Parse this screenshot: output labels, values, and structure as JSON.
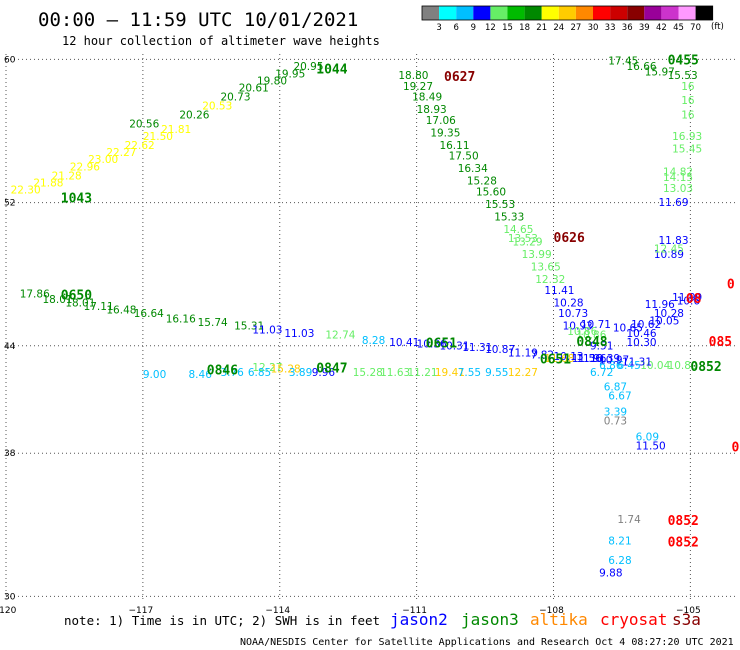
{
  "header": {
    "title": "00:00 – 11:59 UTC 10/01/2021",
    "subtitle": "12 hour collection of altimeter wave heights"
  },
  "legend": {
    "unit": "(ft)",
    "bins": [
      {
        "label": "3",
        "color": "#808080"
      },
      {
        "label": "6",
        "color": "#00ffff"
      },
      {
        "label": "9",
        "color": "#00bfff"
      },
      {
        "label": "12",
        "color": "#0000ff"
      },
      {
        "label": "15",
        "color": "#66ee66"
      },
      {
        "label": "18",
        "color": "#00bb00"
      },
      {
        "label": "21",
        "color": "#008800"
      },
      {
        "label": "24",
        "color": "#ffff00"
      },
      {
        "label": "27",
        "color": "#ffcc00"
      },
      {
        "label": "30",
        "color": "#ff8800"
      },
      {
        "label": "33",
        "color": "#ff0000"
      },
      {
        "label": "36",
        "color": "#cc0000"
      },
      {
        "label": "39",
        "color": "#880000"
      },
      {
        "label": "42",
        "color": "#990099"
      },
      {
        "label": "45",
        "color": "#cc33cc"
      },
      {
        "label": "70",
        "color": "#ff99ff"
      },
      {
        "label": "",
        "color": "#000000"
      }
    ]
  },
  "footer": {
    "note": "note:  1) Time is in UTC;  2) SWH is in feet",
    "satellites": [
      {
        "name": "jason2",
        "color": "#0000ff"
      },
      {
        "name": "jason3",
        "color": "#008800"
      },
      {
        "name": "altika",
        "color": "#ff8800"
      },
      {
        "name": "cryosat",
        "color": "#ff0000"
      },
      {
        "name": "s3a",
        "color": "#880000"
      }
    ],
    "credit": "NOAA/NESDIS Center for Satellite Applications and Research     Oct  4 08:27:20 UTC 2021"
  },
  "chart_data": {
    "type": "scatter",
    "xlim": [
      -120,
      -104
    ],
    "ylim": [
      29.8,
      60.3
    ],
    "x_ticks": [
      {
        "v": -120,
        "label": "−120"
      },
      {
        "v": -117,
        "label": "−117"
      },
      {
        "v": -114,
        "label": "−114"
      },
      {
        "v": -111,
        "label": "−111"
      },
      {
        "v": -108,
        "label": "−108"
      },
      {
        "v": -105,
        "label": "−105"
      }
    ],
    "y_ticks": [
      {
        "v": 60,
        "label": "60"
      },
      {
        "v": 52,
        "label": "52"
      },
      {
        "v": 44,
        "label": "44"
      },
      {
        "v": 38,
        "label": "38"
      },
      {
        "v": 30,
        "label": "30"
      }
    ],
    "grid": true,
    "point_labels": [
      {
        "x": -119.9,
        "y": 52.5,
        "text": "22.30",
        "color": "#ffff00"
      },
      {
        "x": -119.4,
        "y": 52.9,
        "text": "21.88",
        "color": "#ffff00"
      },
      {
        "x": -119.0,
        "y": 53.3,
        "text": "21.28",
        "color": "#ffff00"
      },
      {
        "x": -118.6,
        "y": 53.8,
        "text": "22.96",
        "color": "#ffff00"
      },
      {
        "x": -118.2,
        "y": 54.2,
        "text": "23.00",
        "color": "#ffff00"
      },
      {
        "x": -117.8,
        "y": 54.6,
        "text": "22.27",
        "color": "#ffff00"
      },
      {
        "x": -117.4,
        "y": 55.0,
        "text": "22.62",
        "color": "#ffff00"
      },
      {
        "x": -117.0,
        "y": 55.5,
        "text": "21.50",
        "color": "#ffff00"
      },
      {
        "x": -116.6,
        "y": 55.9,
        "text": "21.81",
        "color": "#ffff00"
      },
      {
        "x": -117.3,
        "y": 56.2,
        "text": "20.56",
        "color": "#008800"
      },
      {
        "x": -116.2,
        "y": 56.7,
        "text": "20.26",
        "color": "#008800"
      },
      {
        "x": -115.7,
        "y": 57.2,
        "text": "20.53",
        "color": "#ffff00"
      },
      {
        "x": -115.3,
        "y": 57.7,
        "text": "20.73",
        "color": "#008800"
      },
      {
        "x": -114.9,
        "y": 58.2,
        "text": "20.61",
        "color": "#008800"
      },
      {
        "x": -114.5,
        "y": 58.6,
        "text": "19.80",
        "color": "#008800"
      },
      {
        "x": -114.1,
        "y": 59.0,
        "text": "19.95",
        "color": "#008800"
      },
      {
        "x": -113.7,
        "y": 59.4,
        "text": "20.95",
        "color": "#008800"
      },
      {
        "x": -111.4,
        "y": 58.9,
        "text": "18.80",
        "color": "#008800"
      },
      {
        "x": -111.3,
        "y": 58.3,
        "text": "19.27",
        "color": "#008800"
      },
      {
        "x": -111.1,
        "y": 57.7,
        "text": "18.49",
        "color": "#008800"
      },
      {
        "x": -111.0,
        "y": 57.0,
        "text": "18.93",
        "color": "#008800"
      },
      {
        "x": -110.8,
        "y": 56.4,
        "text": "17.06",
        "color": "#008800"
      },
      {
        "x": -110.7,
        "y": 55.7,
        "text": "19.35",
        "color": "#008800"
      },
      {
        "x": -110.5,
        "y": 55.0,
        "text": "16.11",
        "color": "#008800"
      },
      {
        "x": -110.3,
        "y": 54.4,
        "text": "17.50",
        "color": "#008800"
      },
      {
        "x": -110.1,
        "y": 53.7,
        "text": "16.34",
        "color": "#008800"
      },
      {
        "x": -109.9,
        "y": 53.0,
        "text": "15.28",
        "color": "#008800"
      },
      {
        "x": -109.7,
        "y": 52.4,
        "text": "15.60",
        "color": "#008800"
      },
      {
        "x": -109.5,
        "y": 51.7,
        "text": "15.53",
        "color": "#008800"
      },
      {
        "x": -109.3,
        "y": 51.0,
        "text": "15.33",
        "color": "#008800"
      },
      {
        "x": -109.1,
        "y": 50.3,
        "text": "14.65",
        "color": "#66ee66"
      },
      {
        "x": -109.0,
        "y": 49.8,
        "text": "13.53",
        "color": "#66ee66"
      },
      {
        "x": -108.9,
        "y": 49.6,
        "text": "13.29",
        "color": "#66ee66"
      },
      {
        "x": -108.7,
        "y": 48.9,
        "text": "13.99",
        "color": "#66ee66"
      },
      {
        "x": -108.5,
        "y": 48.2,
        "text": "13.65",
        "color": "#66ee66"
      },
      {
        "x": -108.4,
        "y": 47.5,
        "text": "12.32",
        "color": "#66ee66"
      },
      {
        "x": -108.2,
        "y": 46.9,
        "text": "11.41",
        "color": "#0000ff"
      },
      {
        "x": -108.0,
        "y": 46.2,
        "text": "10.28",
        "color": "#0000ff"
      },
      {
        "x": -107.9,
        "y": 45.6,
        "text": "10.73",
        "color": "#0000ff"
      },
      {
        "x": -107.8,
        "y": 44.9,
        "text": "10.93",
        "color": "#0000ff"
      },
      {
        "x": -107.4,
        "y": 45.0,
        "text": "10.71",
        "color": "#0000ff"
      },
      {
        "x": -107.7,
        "y": 44.6,
        "text": "10.86",
        "color": "#66ee66"
      },
      {
        "x": -107.5,
        "y": 44.4,
        "text": "10.86",
        "color": "#66ee66"
      },
      {
        "x": -107.2,
        "y": 43.8,
        "text": "9.51",
        "color": "#0000ff"
      },
      {
        "x": -107.6,
        "y": 43.1,
        "text": "11.56",
        "color": "#0000ff"
      },
      {
        "x": -107.2,
        "y": 43.1,
        "text": "10.39",
        "color": "#0000ff"
      },
      {
        "x": -108.2,
        "y": 43.1,
        "text": "11.68",
        "color": "#ffcc00"
      },
      {
        "x": -107.0,
        "y": 42.7,
        "text": "6.86",
        "color": "#00bfff"
      },
      {
        "x": -107.2,
        "y": 42.3,
        "text": "6.72",
        "color": "#00bfff"
      },
      {
        "x": -106.6,
        "y": 42.7,
        "text": "6.45",
        "color": "#00bfff"
      },
      {
        "x": -106.1,
        "y": 42.7,
        "text": "10.04",
        "color": "#66ee66"
      },
      {
        "x": -105.5,
        "y": 42.7,
        "text": "10.80",
        "color": "#66ee66"
      },
      {
        "x": -106.9,
        "y": 41.5,
        "text": "6.87",
        "color": "#00bfff"
      },
      {
        "x": -106.8,
        "y": 41.0,
        "text": "6.67",
        "color": "#00bfff"
      },
      {
        "x": -106.9,
        "y": 40.1,
        "text": "3.39",
        "color": "#00bfff"
      },
      {
        "x": -106.9,
        "y": 39.6,
        "text": "0.73",
        "color": "#808080"
      },
      {
        "x": -106.2,
        "y": 38.7,
        "text": "6.09",
        "color": "#00bfff"
      },
      {
        "x": -106.2,
        "y": 38.2,
        "text": "11.50",
        "color": "#0000ff"
      },
      {
        "x": -106.7,
        "y": 44.8,
        "text": "10.65",
        "color": "#0000ff"
      },
      {
        "x": -106.3,
        "y": 45.0,
        "text": "10.62",
        "color": "#0000ff"
      },
      {
        "x": -105.9,
        "y": 45.2,
        "text": "10.05",
        "color": "#0000ff"
      },
      {
        "x": -106.4,
        "y": 44.5,
        "text": "10.46",
        "color": "#0000ff"
      },
      {
        "x": -106.4,
        "y": 44.0,
        "text": "10.30",
        "color": "#0000ff"
      },
      {
        "x": -106.0,
        "y": 46.1,
        "text": "11.96",
        "color": "#0000ff"
      },
      {
        "x": -105.8,
        "y": 45.6,
        "text": "10.28",
        "color": "#0000ff"
      },
      {
        "x": -105.3,
        "y": 46.3,
        "text": "10.6",
        "color": "#0000ff"
      },
      {
        "x": -105.8,
        "y": 48.9,
        "text": "10.89",
        "color": "#0000ff"
      },
      {
        "x": -105.4,
        "y": 46.5,
        "text": "11.99",
        "color": "#0000ff"
      },
      {
        "x": -105.7,
        "y": 49.7,
        "text": "11.83",
        "color": "#0000ff"
      },
      {
        "x": -105.7,
        "y": 51.8,
        "text": "11.69",
        "color": "#0000ff"
      },
      {
        "x": -105.8,
        "y": 49.2,
        "text": "12.45",
        "color": "#66ee66"
      },
      {
        "x": -105.6,
        "y": 52.6,
        "text": "13.03",
        "color": "#66ee66"
      },
      {
        "x": -105.6,
        "y": 53.2,
        "text": "14.15",
        "color": "#66ee66"
      },
      {
        "x": -105.6,
        "y": 53.5,
        "text": "14.82",
        "color": "#66ee66"
      },
      {
        "x": -105.4,
        "y": 54.8,
        "text": "15.45",
        "color": "#66ee66"
      },
      {
        "x": -105.4,
        "y": 55.5,
        "text": "16.93",
        "color": "#66ee66"
      },
      {
        "x": -105.2,
        "y": 56.7,
        "text": "16",
        "color": "#66ee66"
      },
      {
        "x": -105.2,
        "y": 57.5,
        "text": "16",
        "color": "#66ee66"
      },
      {
        "x": -105.2,
        "y": 58.3,
        "text": "16",
        "color": "#66ee66"
      },
      {
        "x": -105.5,
        "y": 58.9,
        "text": "15.53",
        "color": "#008800"
      },
      {
        "x": -106.0,
        "y": 59.1,
        "text": "15.97",
        "color": "#008800"
      },
      {
        "x": -106.4,
        "y": 59.4,
        "text": "16.66",
        "color": "#008800"
      },
      {
        "x": -106.8,
        "y": 59.7,
        "text": "17.45",
        "color": "#008800"
      },
      {
        "x": -119.7,
        "y": 46.7,
        "text": "17.86",
        "color": "#008800"
      },
      {
        "x": -119.2,
        "y": 46.4,
        "text": "18.01",
        "color": "#008800"
      },
      {
        "x": -118.7,
        "y": 46.2,
        "text": "18.01",
        "color": "#008800"
      },
      {
        "x": -118.3,
        "y": 46.0,
        "text": "17.11",
        "color": "#008800"
      },
      {
        "x": -117.8,
        "y": 45.8,
        "text": "16.48",
        "color": "#008800"
      },
      {
        "x": -117.2,
        "y": 45.6,
        "text": "16.64",
        "color": "#008800"
      },
      {
        "x": -116.5,
        "y": 45.3,
        "text": "16.16",
        "color": "#008800"
      },
      {
        "x": -115.8,
        "y": 45.1,
        "text": "15.74",
        "color": "#008800"
      },
      {
        "x": -115.0,
        "y": 44.9,
        "text": "15.31",
        "color": "#008800"
      },
      {
        "x": -114.6,
        "y": 44.7,
        "text": "11.03",
        "color": "#0000ff"
      },
      {
        "x": -113.9,
        "y": 44.5,
        "text": "11.03",
        "color": "#0000ff"
      },
      {
        "x": -113.0,
        "y": 44.4,
        "text": "12.74",
        "color": "#66ee66"
      },
      {
        "x": -112.2,
        "y": 44.1,
        "text": "8.28",
        "color": "#00bfff"
      },
      {
        "x": -111.6,
        "y": 44.0,
        "text": "10.41",
        "color": "#0000ff"
      },
      {
        "x": -111.0,
        "y": 43.9,
        "text": "10.36",
        "color": "#0000ff"
      },
      {
        "x": -110.5,
        "y": 43.8,
        "text": "10.31",
        "color": "#0000ff"
      },
      {
        "x": -110.0,
        "y": 43.7,
        "text": "11.31",
        "color": "#0000ff"
      },
      {
        "x": -109.5,
        "y": 43.6,
        "text": "10.87",
        "color": "#0000ff"
      },
      {
        "x": -109.0,
        "y": 43.4,
        "text": "11.19",
        "color": "#0000ff"
      },
      {
        "x": -108.5,
        "y": 43.3,
        "text": "7.82",
        "color": "#0000ff"
      },
      {
        "x": -108.0,
        "y": 43.2,
        "text": "10.13",
        "color": "#0000ff"
      },
      {
        "x": -107.5,
        "y": 43.1,
        "text": "11.96",
        "color": "#0000ff"
      },
      {
        "x": -107.0,
        "y": 43.0,
        "text": "10.97",
        "color": "#0000ff"
      },
      {
        "x": -106.5,
        "y": 42.9,
        "text": "11.31",
        "color": "#0000ff"
      },
      {
        "x": -114.6,
        "y": 42.6,
        "text": "12.27",
        "color": "#66ee66"
      },
      {
        "x": -114.2,
        "y": 42.5,
        "text": "15.28",
        "color": "#ffcc00"
      },
      {
        "x": -113.3,
        "y": 42.3,
        "text": "9.96",
        "color": "#0000ff"
      },
      {
        "x": -112.4,
        "y": 42.3,
        "text": "15.28",
        "color": "#66ee66"
      },
      {
        "x": -111.8,
        "y": 42.3,
        "text": "11.63",
        "color": "#66ee66"
      },
      {
        "x": -111.2,
        "y": 42.3,
        "text": "11.21",
        "color": "#66ee66"
      },
      {
        "x": -110.6,
        "y": 42.3,
        "text": "19.41",
        "color": "#ffcc00"
      },
      {
        "x": -110.1,
        "y": 42.3,
        "text": "7.55",
        "color": "#00bfff"
      },
      {
        "x": -109.5,
        "y": 42.3,
        "text": "9.55",
        "color": "#00bfff"
      },
      {
        "x": -109.0,
        "y": 42.3,
        "text": "12.27",
        "color": "#ffcc00"
      },
      {
        "x": -117.0,
        "y": 42.2,
        "text": "9.00",
        "color": "#00bfff"
      },
      {
        "x": -116.0,
        "y": 42.2,
        "text": "8.46",
        "color": "#00bfff"
      },
      {
        "x": -115.3,
        "y": 42.3,
        "text": "3.76",
        "color": "#00bfff"
      },
      {
        "x": -114.7,
        "y": 42.3,
        "text": "6.85",
        "color": "#00bfff"
      },
      {
        "x": -113.8,
        "y": 42.3,
        "text": "3.89",
        "color": "#00bfff"
      },
      {
        "x": -106.6,
        "y": 34.1,
        "text": "1.74",
        "color": "#808080"
      },
      {
        "x": -106.8,
        "y": 32.9,
        "text": "8.21",
        "color": "#00bfff"
      },
      {
        "x": -106.8,
        "y": 31.8,
        "text": "6.28",
        "color": "#00bfff"
      },
      {
        "x": -107.0,
        "y": 31.1,
        "text": "9.88",
        "color": "#0000ff"
      }
    ],
    "time_labels": [
      {
        "x": -118.8,
        "y": 52.0,
        "text": "1043",
        "color": "#008800"
      },
      {
        "x": -113.2,
        "y": 59.2,
        "text": "1044",
        "color": "#008800"
      },
      {
        "x": -110.4,
        "y": 58.8,
        "text": "0627",
        "color": "#880000"
      },
      {
        "x": -108.0,
        "y": 49.8,
        "text": "0626",
        "color": "#880000"
      },
      {
        "x": -105.5,
        "y": 59.7,
        "text": "0455",
        "color": "#008800"
      },
      {
        "x": -118.8,
        "y": 46.6,
        "text": "0650",
        "color": "#008800"
      },
      {
        "x": -110.8,
        "y": 43.9,
        "text": "0651",
        "color": "#008800"
      },
      {
        "x": -108.3,
        "y": 43.0,
        "text": "0651",
        "color": "#008800"
      },
      {
        "x": -107.5,
        "y": 44.0,
        "text": "0848",
        "color": "#008800"
      },
      {
        "x": -115.6,
        "y": 42.4,
        "text": "0846",
        "color": "#008800"
      },
      {
        "x": -113.2,
        "y": 42.5,
        "text": "0847",
        "color": "#008800"
      },
      {
        "x": -105.0,
        "y": 42.6,
        "text": "0852",
        "color": "#008800"
      },
      {
        "x": -105.1,
        "y": 46.4,
        "text": "08",
        "color": "#ff0000"
      },
      {
        "x": -104.2,
        "y": 47.2,
        "text": "0",
        "color": "#ff0000"
      },
      {
        "x": -104.6,
        "y": 44.0,
        "text": "085",
        "color": "#ff0000"
      },
      {
        "x": -104.1,
        "y": 38.1,
        "text": "0",
        "color": "#ff0000"
      },
      {
        "x": -105.5,
        "y": 34.0,
        "text": "0852",
        "color": "#ff0000"
      },
      {
        "x": -105.5,
        "y": 32.8,
        "text": "0852",
        "color": "#ff0000"
      }
    ]
  }
}
